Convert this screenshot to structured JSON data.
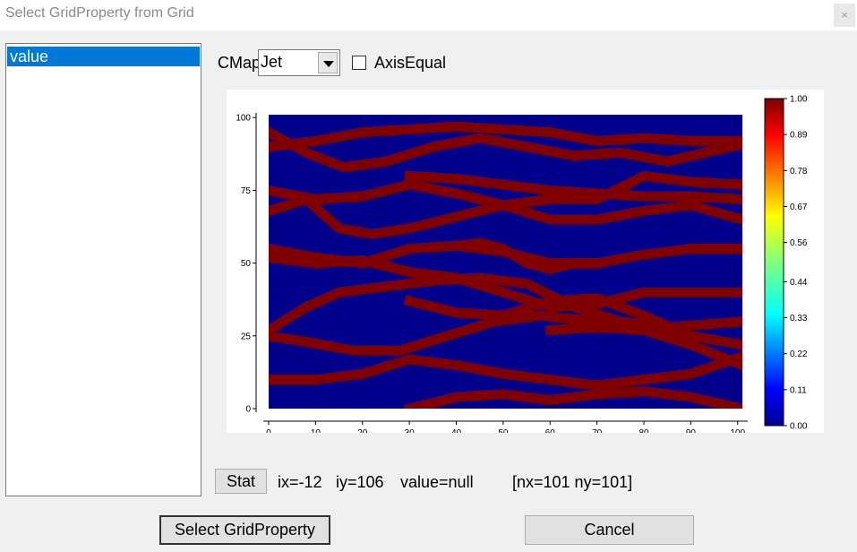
{
  "window": {
    "title": "Select GridProperty from Grid",
    "close_symbol": "×"
  },
  "list": {
    "items": [
      "value"
    ],
    "selected": "value"
  },
  "controls": {
    "cmap_label": "CMap",
    "cmap_value": "Jet",
    "axis_equal_label": "AxisEqual",
    "axis_equal_checked": false
  },
  "status": {
    "stat_label": "Stat",
    "ix": "ix=-12",
    "iy": "iy=106",
    "value": "value=null",
    "dims": "[nx=101  ny=101]"
  },
  "buttons": {
    "select_label": "Select GridProperty",
    "cancel_label": "Cancel"
  },
  "colors": {
    "background_value": "#00008b",
    "channel_value": "#800000",
    "selection": "#0078d7"
  },
  "chart_data": {
    "type": "heatmap",
    "title": "",
    "xlabel": "",
    "ylabel": "",
    "xlim": [
      0,
      101
    ],
    "ylim": [
      0,
      101
    ],
    "x_ticks": [
      "0",
      "10",
      "20",
      "30",
      "40",
      "50",
      "60",
      "70",
      "80",
      "90",
      "100"
    ],
    "y_ticks": [
      "0",
      "25",
      "50",
      "75",
      "100"
    ],
    "colorbar": {
      "colormap": "Jet",
      "range": [
        0,
        1
      ],
      "ticks": [
        "0.00",
        "0.11",
        "0.22",
        "0.33",
        "0.44",
        "0.56",
        "0.67",
        "0.78",
        "0.89",
        "1.00"
      ]
    },
    "channels": [
      {
        "x": [
          0,
          8,
          16,
          25,
          35,
          45,
          55,
          65,
          75,
          85,
          101
        ],
        "y": [
          95,
          88,
          83,
          85,
          90,
          93,
          90,
          87,
          88,
          85,
          91
        ]
      },
      {
        "x": [
          0,
          10,
          20,
          30,
          40,
          50,
          60,
          70,
          80,
          90,
          101
        ],
        "y": [
          90,
          92,
          95,
          96,
          97,
          96,
          95,
          92,
          93,
          92,
          92
        ]
      },
      {
        "x": [
          0,
          10,
          20,
          30,
          40,
          50,
          60,
          70,
          80,
          90,
          101
        ],
        "y": [
          75,
          72,
          73,
          77,
          74,
          70,
          72,
          72,
          80,
          78,
          77
        ]
      },
      {
        "x": [
          30,
          40,
          50,
          60,
          70,
          80,
          90,
          101
        ],
        "y": [
          80,
          79,
          77,
          75,
          74,
          73,
          73,
          72
        ]
      },
      {
        "x": [
          0,
          8,
          15,
          22,
          30,
          40,
          50,
          60,
          70,
          80,
          90,
          101
        ],
        "y": [
          68,
          72,
          62,
          60,
          62,
          66,
          70,
          65,
          65,
          68,
          70,
          65
        ]
      },
      {
        "x": [
          0,
          10,
          20,
          30,
          40,
          50,
          60,
          70,
          80,
          90,
          101
        ],
        "y": [
          55,
          52,
          50,
          55,
          56,
          54,
          50,
          50,
          53,
          55,
          55
        ]
      },
      {
        "x": [
          0,
          10,
          20,
          30,
          40,
          50,
          60,
          70,
          80,
          90,
          101
        ],
        "y": [
          52,
          50,
          51,
          47,
          45,
          40,
          35,
          36,
          40,
          40,
          40
        ]
      },
      {
        "x": [
          40,
          45,
          50,
          55,
          60,
          65,
          70
        ],
        "y": [
          56,
          57,
          55,
          50,
          48,
          50,
          50
        ]
      },
      {
        "x": [
          0,
          8,
          15,
          25,
          35,
          45,
          55,
          65,
          75,
          85,
          101
        ],
        "y": [
          27,
          35,
          40,
          42,
          44,
          45,
          43,
          35,
          30,
          28,
          30
        ]
      },
      {
        "x": [
          0,
          8,
          18,
          28,
          38,
          48,
          58,
          70,
          80,
          90,
          101
        ],
        "y": [
          25,
          23,
          20,
          20,
          25,
          30,
          32,
          30,
          28,
          22,
          15
        ]
      },
      {
        "x": [
          30,
          40,
          50,
          60,
          70,
          80,
          90,
          101
        ],
        "y": [
          37,
          33,
          32,
          37,
          38,
          32,
          25,
          22
        ]
      },
      {
        "x": [
          0,
          10,
          20,
          30,
          40,
          50,
          60,
          70,
          80,
          90,
          101
        ],
        "y": [
          10,
          10,
          12,
          17,
          15,
          12,
          10,
          8,
          10,
          12,
          18
        ]
      },
      {
        "x": [
          60,
          70,
          80,
          90,
          101
        ],
        "y": [
          27,
          28,
          27,
          22,
          15
        ]
      },
      {
        "x": [
          30,
          40,
          50,
          60,
          70,
          80,
          90,
          101
        ],
        "y": [
          0,
          4,
          5,
          3,
          5,
          6,
          4,
          0
        ]
      }
    ]
  }
}
